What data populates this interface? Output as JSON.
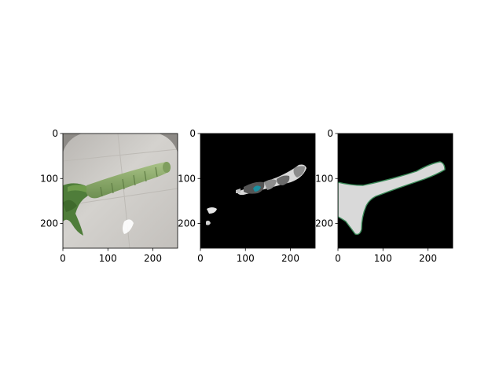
{
  "figure": {
    "background": "#ffffff"
  },
  "chart_data": [
    {
      "type": "image",
      "content": "photo of a lemongrass-like green stalk lying on a light grey tiled floor",
      "xlim": [
        0,
        255
      ],
      "ylim": [
        255,
        0
      ],
      "xticks": [
        0,
        100,
        200
      ],
      "yticks": [
        0,
        100,
        200
      ],
      "xtick_labels": [
        "0",
        "100",
        "200"
      ],
      "ytick_labels": [
        "0",
        "100",
        "200"
      ],
      "colors": {
        "stalk": "#8aa86a",
        "leaves": "#4f7d3a",
        "floor": "#c9c6c2"
      }
    },
    {
      "type": "image",
      "content": "segmentation mask on black background with grey/white regions and a small teal blob",
      "xlim": [
        0,
        255
      ],
      "ylim": [
        255,
        0
      ],
      "xticks": [
        0,
        100,
        200
      ],
      "yticks": [
        0,
        100,
        200
      ],
      "xtick_labels": [
        "0",
        "100",
        "200"
      ],
      "ytick_labels": [
        "0",
        "100",
        "200"
      ],
      "colors": {
        "background": "#000000",
        "region_light": "#d9d9d9",
        "region_mid": "#8c8c8c",
        "region_dark": "#555555",
        "accent": "#1a8fa0"
      }
    },
    {
      "type": "image",
      "content": "binary mask on black background with light grey stalk shape and thin green outline",
      "xlim": [
        0,
        255
      ],
      "ylim": [
        255,
        0
      ],
      "xticks": [
        0,
        100,
        200
      ],
      "yticks": [
        0,
        100,
        200
      ],
      "xtick_labels": [
        "0",
        "100",
        "200"
      ],
      "ytick_labels": [
        "0",
        "100",
        "200"
      ],
      "colors": {
        "background": "#000000",
        "mask": "#d9d9d9",
        "outline": "#3c8c5a"
      }
    }
  ]
}
